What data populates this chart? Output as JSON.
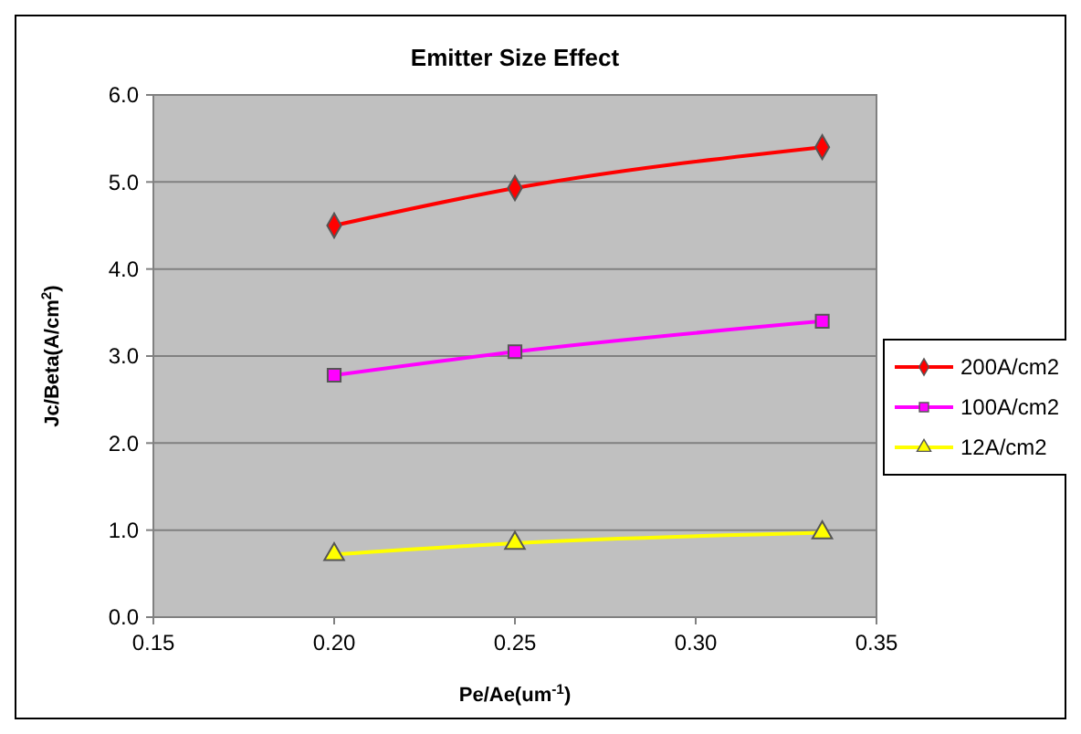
{
  "chart_data": {
    "type": "line",
    "title": "Emitter Size Effect",
    "xlabel": "Pe/Ae(um$^{-1}$)",
    "ylabel": "Jc/Beta(A/cm$^{2}$)",
    "x": [
      0.2,
      0.25,
      0.335
    ],
    "series": [
      {
        "name": "200A/cm2",
        "color": "#ff0000",
        "marker": "diamond",
        "values": [
          4.5,
          4.93,
          5.4
        ]
      },
      {
        "name": "100A/cm2",
        "color": "#ff00ff",
        "marker": "square",
        "values": [
          2.78,
          3.05,
          3.4
        ]
      },
      {
        "name": "12A/cm2",
        "color": "#ffff00",
        "marker": "triangle",
        "values": [
          0.72,
          0.85,
          0.97
        ]
      }
    ],
    "xlim": [
      0.15,
      0.35
    ],
    "xticks": [
      {
        "value": 0.15,
        "label": "0.15"
      },
      {
        "value": 0.2,
        "label": "0.20"
      },
      {
        "value": 0.25,
        "label": "0.25"
      },
      {
        "value": 0.3,
        "label": "0.30"
      },
      {
        "value": 0.35,
        "label": "0.35"
      }
    ],
    "ylim": [
      0,
      6
    ],
    "yticks": [
      {
        "value": 0,
        "label": "0.0"
      },
      {
        "value": 1,
        "label": "1.0"
      },
      {
        "value": 2,
        "label": "2.0"
      },
      {
        "value": 3,
        "label": "3.0"
      },
      {
        "value": 4,
        "label": "4.0"
      },
      {
        "value": 5,
        "label": "5.0"
      },
      {
        "value": 6,
        "label": "6.0"
      }
    ],
    "grid": "y",
    "legend": "right",
    "line_style": "solid"
  }
}
